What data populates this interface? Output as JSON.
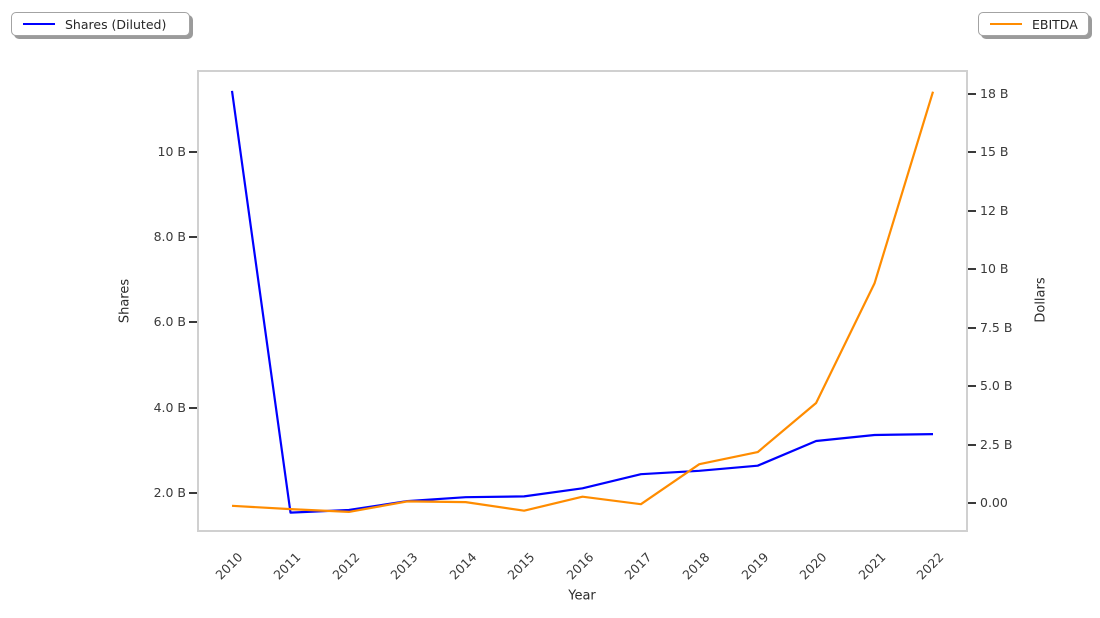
{
  "legends": [
    {
      "label": "Shares (Diluted)",
      "color": "#0000ff",
      "position": "top-left"
    },
    {
      "label": "EBITDA",
      "color": "#ff8c00",
      "position": "top-right"
    }
  ],
  "chart_data": {
    "type": "line",
    "x": [
      2010,
      2011,
      2012,
      2013,
      2014,
      2015,
      2016,
      2017,
      2018,
      2019,
      2020,
      2021,
      2022
    ],
    "x_axis": {
      "label": "Year",
      "range": [
        2009.4,
        2022.6
      ],
      "tick_labels": [
        "2010",
        "2011",
        "2012",
        "2013",
        "2014",
        "2015",
        "2016",
        "2017",
        "2018",
        "2019",
        "2020",
        "2021",
        "2022"
      ],
      "tick_rotation_deg": 45
    },
    "left_axis": {
      "label": "Shares",
      "range": [
        1.085,
        11.92
      ],
      "unit": "B",
      "ticks": [
        {
          "value": 2,
          "label": "2.0 B"
        },
        {
          "value": 4,
          "label": "4.0 B"
        },
        {
          "value": 6,
          "label": "6.0 B"
        },
        {
          "value": 8,
          "label": "8.0 B"
        },
        {
          "value": 10,
          "label": "10 B"
        }
      ]
    },
    "right_axis": {
      "label": "Dollars",
      "range": [
        -1.24,
        18.53
      ],
      "unit": "B",
      "ticks": [
        {
          "value": 0,
          "label": "0.00"
        },
        {
          "value": 2.5,
          "label": "2.5 B"
        },
        {
          "value": 5,
          "label": "5.0 B"
        },
        {
          "value": 7.5,
          "label": "7.5 B"
        },
        {
          "value": 10,
          "label": "10 B"
        },
        {
          "value": 12.5,
          "label": "12 B"
        },
        {
          "value": 15,
          "label": "15 B"
        },
        {
          "value": 17.5,
          "label": "18 B"
        }
      ]
    },
    "series": [
      {
        "name": "Shares (Diluted)",
        "axis": "left",
        "color": "#0000ff",
        "unit": "B",
        "values": [
          11.43,
          1.54,
          1.6,
          1.81,
          1.9,
          1.92,
          2.11,
          2.44,
          2.52,
          2.64,
          3.22,
          3.36,
          3.38
        ]
      },
      {
        "name": "EBITDA",
        "axis": "right",
        "color": "#ff8c00",
        "unit": "B",
        "values": [
          -0.12,
          -0.26,
          -0.38,
          0.07,
          0.04,
          -0.33,
          0.27,
          -0.05,
          1.66,
          2.18,
          4.28,
          9.4,
          17.6
        ]
      }
    ],
    "grid": false,
    "background": "#ffffff"
  }
}
